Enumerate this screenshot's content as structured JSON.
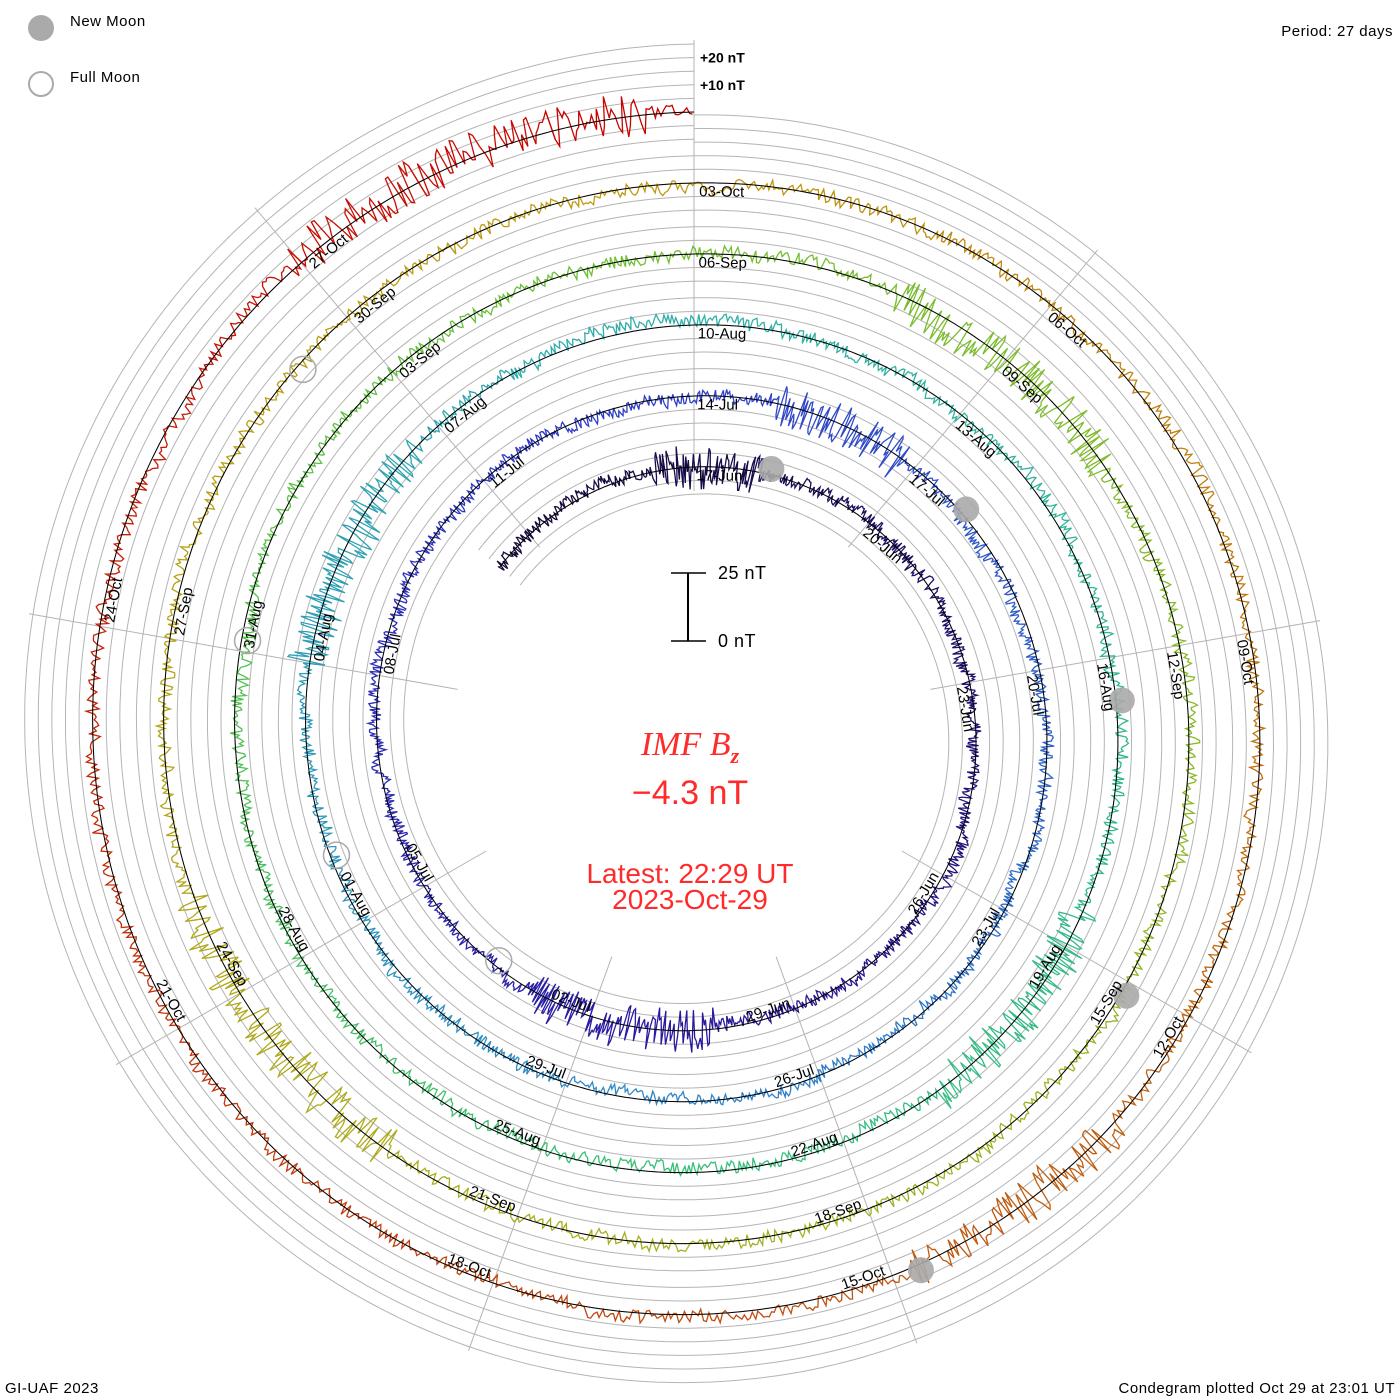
{
  "legend": {
    "new_moon": "New Moon",
    "full_moon": "Full Moon"
  },
  "period": "Period: 27 days",
  "footer_left": "GI-UAF 2023",
  "footer_right": "Condegram plotted Oct 29 at 23:01 UT",
  "scale_bar": {
    "top": "25 nT",
    "bottom": "0 nT"
  },
  "center": {
    "title_main": "IMF B",
    "title_sub": "z",
    "value": "−4.3 nT",
    "latest": "Latest: 22:29 UT",
    "date": "2023-Oct-29"
  },
  "chart_data": {
    "type": "line",
    "variant": "spiral condegram (time spiral, 27-day period)",
    "title": "IMF Bz",
    "units": "nT",
    "period_days": 27,
    "start": "2023-06-13T05:00Z",
    "end": "2023-10-29T23:00Z",
    "latest_value": -4.3,
    "scale_bar_nT": [
      0,
      25
    ],
    "grid_spacing_nT": 5,
    "ring_labels": [
      "+20 nT",
      "+10 nT"
    ],
    "date_labels": [
      "17-Jun",
      "20-Jun",
      "23-Jun",
      "26-Jun",
      "29-Jun",
      "02-Jul",
      "05-Jul",
      "08-Jul",
      "11-Jul",
      "14-Jul",
      "17-Jul",
      "20-Jul",
      "23-Jul",
      "26-Jul",
      "29-Jul",
      "01-Aug",
      "04-Aug",
      "07-Aug",
      "10-Aug",
      "13-Aug",
      "16-Aug",
      "19-Aug",
      "22-Aug",
      "25-Aug",
      "28-Aug",
      "31-Aug",
      "03-Sep",
      "06-Sep",
      "09-Sep",
      "12-Sep",
      "15-Sep",
      "18-Sep",
      "21-Sep",
      "24-Sep",
      "27-Sep",
      "30-Sep",
      "03-Oct",
      "06-Oct",
      "09-Oct",
      "12-Oct",
      "15-Oct",
      "18-Oct",
      "21-Oct",
      "24-Oct",
      "27-Oct"
    ],
    "new_moons": [
      "2023-06-18T04:37Z",
      "2023-07-17T18:32Z",
      "2023-08-16T09:38Z",
      "2023-09-15T01:40Z",
      "2023-10-14T17:55Z"
    ],
    "full_moons": [
      "2023-07-03T11:39Z",
      "2023-08-01T18:32Z",
      "2023-08-31T01:36Z",
      "2023-09-29T09:58Z"
    ],
    "color_stops_days_before_end": [
      {
        "d": 0,
        "c": "#c80000"
      },
      {
        "d": 13,
        "c": "#c04a10"
      },
      {
        "d": 27,
        "c": "#c09810"
      },
      {
        "d": 40,
        "c": "#a8b020"
      },
      {
        "d": 54,
        "c": "#70c030"
      },
      {
        "d": 67,
        "c": "#38c078"
      },
      {
        "d": 81,
        "c": "#30b0a8"
      },
      {
        "d": 94,
        "c": "#3088c8"
      },
      {
        "d": 108,
        "c": "#3040c8"
      },
      {
        "d": 121,
        "c": "#2a1aa0"
      },
      {
        "d": 138,
        "c": "#160838"
      }
    ],
    "series_note": "Bz trace along spiral, dense 1-min data (not enumerable); rendered as noisy trace"
  }
}
